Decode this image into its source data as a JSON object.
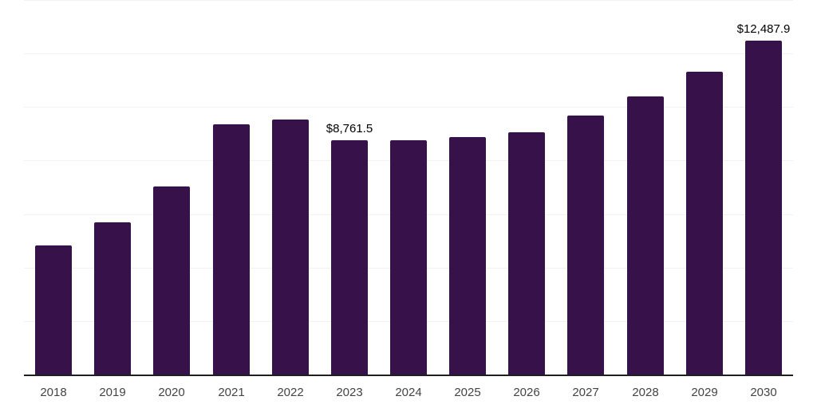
{
  "chart_data": {
    "type": "bar",
    "title": "",
    "xlabel": "",
    "ylabel": "",
    "categories": [
      "2018",
      "2019",
      "2020",
      "2021",
      "2022",
      "2023",
      "2024",
      "2025",
      "2026",
      "2027",
      "2028",
      "2029",
      "2030"
    ],
    "values": [
      4830,
      5695,
      7040,
      9365,
      9540,
      8761.5,
      8755,
      8885,
      9065,
      9690,
      10410,
      11330,
      12487.9
    ],
    "annotations": [
      {
        "category": "2023",
        "text": "$8,761.5"
      },
      {
        "category": "2030",
        "text": "$12,487.9"
      }
    ],
    "ylim": [
      0,
      14000
    ],
    "gridline_step": 2000,
    "grid": "horizontal-only",
    "legend": "none",
    "y_axis_labels_visible": false,
    "colors": {
      "bar": "#36114a",
      "gridline": "#f2f2f2",
      "axis_line": "#1f1f1f",
      "tick_label": "#444444",
      "data_label": "#000000",
      "background": "#ffffff"
    }
  }
}
